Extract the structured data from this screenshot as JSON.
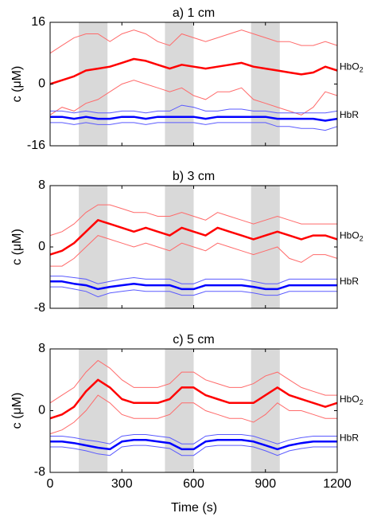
{
  "figure": {
    "xlabel": "Time (s)",
    "x_ticks": [
      "0",
      "300",
      "600",
      "900",
      "1200"
    ]
  },
  "colors": {
    "hbo2": "#ff0000",
    "hbo2_band": "#ff6a6a",
    "hbr": "#0000ff",
    "hbr_band": "#5a5aff",
    "stim": "#d9d9d9"
  },
  "chart_data": [
    {
      "type": "line",
      "title": "a) 1 cm",
      "ylabel": "c (μM)",
      "xlim": [
        0,
        1200
      ],
      "ylim": [
        -16,
        16
      ],
      "y_ticks": [
        "16",
        "0",
        "-16"
      ],
      "stimulus_blocks": [
        [
          120,
          240
        ],
        [
          480,
          600
        ],
        [
          840,
          960
        ]
      ],
      "x": [
        0,
        50,
        100,
        150,
        200,
        250,
        300,
        350,
        400,
        450,
        500,
        550,
        600,
        650,
        700,
        750,
        800,
        850,
        900,
        950,
        1000,
        1050,
        1100,
        1150,
        1200
      ],
      "series": [
        {
          "name": "HbO2",
          "label_prefix": "HbO",
          "label_sub": "2",
          "mean": [
            0,
            1,
            2,
            3.5,
            4,
            4.5,
            5.5,
            6.5,
            6,
            5,
            4,
            5,
            4.5,
            4,
            4.5,
            5,
            5.5,
            4.5,
            4,
            3.5,
            3,
            2.5,
            3,
            4.5,
            3.5
          ],
          "upper": [
            8,
            10,
            12,
            13,
            13,
            11,
            13,
            14,
            13,
            11,
            10,
            13,
            12,
            11,
            12,
            13,
            14,
            13,
            12,
            11,
            11,
            10,
            10,
            11,
            10
          ],
          "lower": [
            -8,
            -6,
            -7,
            -5,
            -4,
            -2,
            0,
            1,
            0,
            -1,
            -2,
            -1,
            -3,
            -4,
            -2,
            -2,
            -1,
            -4,
            -5,
            -6,
            -7,
            -8,
            -6,
            -2,
            -3
          ]
        },
        {
          "name": "HbR",
          "label_prefix": "HbR",
          "label_sub": "",
          "mean": [
            -8.5,
            -8.5,
            -9,
            -8.5,
            -9,
            -9,
            -8.5,
            -8.5,
            -9,
            -8.5,
            -8.5,
            -8.5,
            -8.5,
            -9,
            -8.5,
            -8.5,
            -8.5,
            -8.5,
            -8.5,
            -9,
            -9,
            -9,
            -9,
            -9.5,
            -9
          ],
          "upper": [
            -7,
            -7,
            -7.5,
            -7,
            -7.5,
            -7.5,
            -7,
            -7,
            -7.5,
            -7,
            -7,
            -5.5,
            -6,
            -7,
            -7,
            -6.5,
            -6.5,
            -7,
            -7,
            -7.5,
            -7.5,
            -7.5,
            -7.5,
            -7.5,
            -7
          ],
          "lower": [
            -10,
            -10,
            -10.5,
            -10,
            -10.5,
            -10.5,
            -10,
            -10,
            -10.5,
            -10,
            -10,
            -10,
            -10,
            -10.5,
            -10,
            -10,
            -10,
            -10,
            -10,
            -11,
            -11,
            -11.5,
            -11.5,
            -12,
            -11
          ]
        }
      ]
    },
    {
      "type": "line",
      "title": "b) 3 cm",
      "ylabel": "c (μM)",
      "xlim": [
        0,
        1200
      ],
      "ylim": [
        -8,
        8
      ],
      "y_ticks": [
        "8",
        "0",
        "-8"
      ],
      "stimulus_blocks": [
        [
          120,
          240
        ],
        [
          480,
          600
        ],
        [
          840,
          960
        ]
      ],
      "x": [
        0,
        50,
        100,
        150,
        200,
        250,
        300,
        350,
        400,
        450,
        500,
        550,
        600,
        650,
        700,
        750,
        800,
        850,
        900,
        950,
        1000,
        1050,
        1100,
        1150,
        1200
      ],
      "series": [
        {
          "name": "HbO2",
          "label_prefix": "HbO",
          "label_sub": "2",
          "mean": [
            -1,
            -0.5,
            0.5,
            2,
            3.5,
            3,
            2.5,
            2,
            2.5,
            2,
            1.5,
            2.5,
            2,
            1.5,
            2.5,
            2,
            1.5,
            1,
            1.5,
            2,
            1.5,
            1,
            1.5,
            1.5,
            1
          ],
          "upper": [
            1.5,
            2,
            3,
            4.5,
            5.5,
            5.5,
            5,
            4.5,
            4.5,
            4,
            4,
            4.5,
            4,
            3.5,
            4.5,
            4,
            3.5,
            3,
            3.5,
            4,
            3.5,
            3,
            3,
            3,
            3
          ],
          "lower": [
            -2.5,
            -2.5,
            -1.5,
            0,
            1.5,
            1,
            0.5,
            0,
            0.5,
            0,
            -0.5,
            0.5,
            0,
            -0.5,
            0.5,
            0,
            -0.5,
            -1,
            -0.5,
            0,
            -1.5,
            -2,
            -1,
            -1,
            -1.5
          ]
        },
        {
          "name": "HbR",
          "label_prefix": "HbR",
          "label_sub": "",
          "mean": [
            -4.5,
            -4.5,
            -4.8,
            -5,
            -5.5,
            -5.2,
            -5,
            -4.8,
            -5,
            -5,
            -5,
            -5.5,
            -5.5,
            -5,
            -5,
            -5,
            -5,
            -5.2,
            -5.5,
            -5.5,
            -5,
            -5,
            -5,
            -5,
            -5
          ],
          "upper": [
            -3.8,
            -3.8,
            -4,
            -4.2,
            -4.8,
            -4.5,
            -4.2,
            -4,
            -4.2,
            -4.2,
            -4.2,
            -4.8,
            -4.8,
            -4.2,
            -4.2,
            -4.2,
            -4.2,
            -4.5,
            -4.8,
            -4.8,
            -4.2,
            -4.2,
            -4.2,
            -4.2,
            -4.2
          ],
          "lower": [
            -5.2,
            -5.2,
            -5.5,
            -5.8,
            -6.5,
            -6,
            -5.8,
            -5.6,
            -5.8,
            -5.8,
            -5.8,
            -6.3,
            -6.3,
            -5.8,
            -5.8,
            -5.8,
            -5.8,
            -6,
            -6.3,
            -6.3,
            -5.8,
            -5.8,
            -5.8,
            -5.8,
            -5.8
          ]
        }
      ]
    },
    {
      "type": "line",
      "title": "c) 5 cm",
      "ylabel": "c (μM)",
      "xlim": [
        0,
        1200
      ],
      "ylim": [
        -8,
        8
      ],
      "y_ticks": [
        "8",
        "0",
        "-8"
      ],
      "stimulus_blocks": [
        [
          120,
          240
        ],
        [
          480,
          600
        ],
        [
          840,
          960
        ]
      ],
      "x": [
        0,
        50,
        100,
        150,
        200,
        250,
        300,
        350,
        400,
        450,
        500,
        550,
        600,
        650,
        700,
        750,
        800,
        850,
        900,
        950,
        1000,
        1050,
        1100,
        1150,
        1200
      ],
      "series": [
        {
          "name": "HbO2",
          "label_prefix": "HbO",
          "label_sub": "2",
          "mean": [
            -1,
            -0.5,
            0.5,
            2.5,
            4,
            3,
            1.5,
            1,
            1,
            1,
            1.5,
            3,
            3,
            2,
            1.5,
            1,
            1,
            1,
            2,
            3,
            2,
            1.5,
            1,
            0.5,
            1
          ],
          "upper": [
            1,
            2,
            3,
            5,
            6.5,
            5.5,
            4,
            3,
            3,
            3,
            3.5,
            5,
            5,
            4,
            3.5,
            3,
            3,
            3.5,
            4.5,
            5,
            4,
            3,
            2.5,
            2,
            2
          ],
          "lower": [
            -3,
            -2.5,
            -1.5,
            0,
            2,
            1,
            -0.5,
            -1,
            -1,
            -1,
            -0.5,
            1,
            1,
            0,
            -0.5,
            -1,
            -1,
            -1.5,
            -0.5,
            1,
            0,
            0,
            -0.5,
            -1,
            -1
          ]
        },
        {
          "name": "HbR",
          "label_prefix": "HbR",
          "label_sub": "",
          "mean": [
            -4,
            -4,
            -4.2,
            -4.5,
            -4.8,
            -5,
            -4,
            -3.8,
            -3.8,
            -4,
            -4.2,
            -5,
            -5,
            -4,
            -3.8,
            -3.8,
            -3.8,
            -4,
            -4.5,
            -5,
            -4.5,
            -4.2,
            -4,
            -4,
            -4
          ],
          "upper": [
            -3.3,
            -3.3,
            -3.5,
            -3.8,
            -4,
            -4.3,
            -3.3,
            -3.1,
            -3.1,
            -3.3,
            -3.5,
            -4.3,
            -4.3,
            -3.3,
            -3.1,
            -3.1,
            -3.1,
            -3.3,
            -3.8,
            -4.3,
            -3.8,
            -3.5,
            -3.3,
            -3.3,
            -3.3
          ],
          "lower": [
            -4.7,
            -4.7,
            -4.9,
            -5.2,
            -5.6,
            -5.8,
            -4.7,
            -4.5,
            -4.5,
            -4.7,
            -4.9,
            -5.8,
            -5.8,
            -4.7,
            -4.5,
            -4.5,
            -4.5,
            -4.7,
            -5.2,
            -5.8,
            -5.2,
            -4.9,
            -4.7,
            -4.7,
            -4.7
          ]
        }
      ]
    }
  ]
}
